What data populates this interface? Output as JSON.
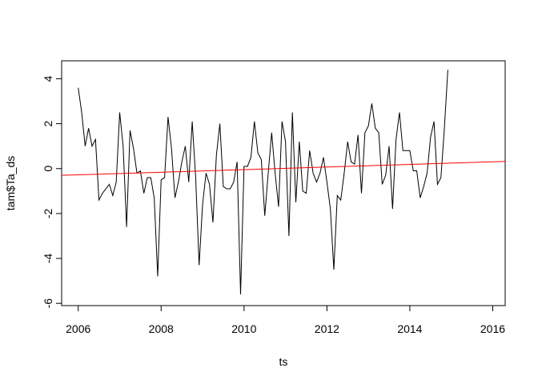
{
  "chart_data": {
    "type": "line",
    "title": "",
    "xlabel": "ts",
    "ylabel": "tam$Ta_ds",
    "xlim": [
      2005.6,
      2016.3
    ],
    "ylim": [
      -6.1,
      4.8
    ],
    "xticks": [
      2006,
      2008,
      2010,
      2012,
      2014,
      2016
    ],
    "xtick_labels": [
      "2006",
      "2008",
      "2010",
      "2012",
      "2014",
      "2016"
    ],
    "yticks": [
      -6,
      -4,
      -2,
      0,
      2,
      4
    ],
    "ytick_labels": [
      "-6",
      "-4",
      "-2",
      "0",
      "2",
      "4"
    ],
    "grid": false,
    "legend": "none",
    "series": [
      {
        "color": "#000000",
        "start": 2006,
        "step": 0.0833333,
        "values": [
          3.6,
          2.5,
          1.0,
          1.8,
          1.0,
          1.3,
          -1.4,
          -1.1,
          -0.9,
          -0.7,
          -1.2,
          -0.6,
          2.5,
          1.0,
          -2.6,
          1.7,
          0.9,
          -0.2,
          -0.1,
          -1.1,
          -0.4,
          -0.4,
          -1.3,
          -4.8,
          -0.5,
          -0.4,
          2.3,
          0.9,
          -1.3,
          -0.6,
          0.3,
          1.0,
          -0.6,
          2.1,
          -0.4,
          -4.3,
          -1.6,
          -0.2,
          -0.7,
          -2.4,
          0.6,
          2.0,
          -0.8,
          -0.9,
          -0.9,
          -0.6,
          0.3,
          -5.6,
          0.1,
          0.1,
          0.5,
          2.1,
          0.7,
          0.4,
          -2.1,
          -0.2,
          1.6,
          -0.2,
          -1.7,
          2.1,
          1.2,
          -3.0,
          2.5,
          -1.5,
          1.2,
          -1.0,
          -1.1,
          0.8,
          -0.2,
          -0.6,
          -0.2,
          0.5,
          -0.6,
          -1.8,
          -4.5,
          -1.2,
          -1.4,
          -0.2,
          1.2,
          0.3,
          0.2,
          1.5,
          -1.1,
          1.6,
          1.9,
          2.9,
          1.8,
          1.6,
          -0.7,
          -0.3,
          1.0,
          -1.8,
          1.3,
          2.5,
          0.8,
          0.8,
          0.8,
          -0.1,
          -0.1,
          -1.3,
          -0.8,
          -0.2,
          1.4,
          2.1,
          -0.7,
          -0.4,
          1.8,
          4.4
        ]
      },
      {
        "color": "#ff0000",
        "x": [
          2005.6,
          2016.3
        ],
        "y": [
          -0.3,
          0.32
        ]
      }
    ]
  }
}
